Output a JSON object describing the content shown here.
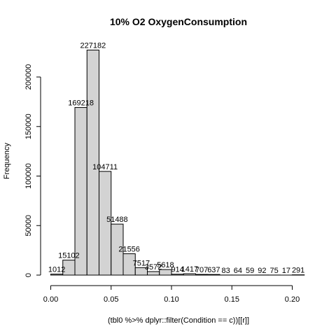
{
  "chart_data": {
    "type": "bar",
    "title": "10% O2 OxygenConsumption",
    "xlabel": "(tbl0 %>% dplyr::filter(Condition == c))[[r]]",
    "ylabel": "Frequency",
    "xlim": [
      0,
      0.21
    ],
    "ylim": [
      0,
      227182
    ],
    "x_ticks": [
      0.0,
      0.05,
      0.1,
      0.15,
      0.2
    ],
    "x_tick_labels": [
      "0.00",
      "0.05",
      "0.10",
      "0.15",
      "0.20"
    ],
    "y_ticks": [
      0,
      50000,
      100000,
      150000,
      200000
    ],
    "y_tick_labels": [
      "0",
      "50000",
      "100000",
      "150000",
      "200000"
    ],
    "bin_width": 0.01,
    "bins": [
      {
        "x0": 0.0,
        "x1": 0.01,
        "value": 1012,
        "label": "1012"
      },
      {
        "x0": 0.01,
        "x1": 0.02,
        "value": 15102,
        "label": "15102"
      },
      {
        "x0": 0.02,
        "x1": 0.03,
        "value": 169218,
        "label": "169218"
      },
      {
        "x0": 0.03,
        "x1": 0.04,
        "value": 227182,
        "label": "227182"
      },
      {
        "x0": 0.04,
        "x1": 0.05,
        "value": 104711,
        "label": "104711"
      },
      {
        "x0": 0.05,
        "x1": 0.06,
        "value": 51488,
        "label": "51488"
      },
      {
        "x0": 0.06,
        "x1": 0.07,
        "value": 21556,
        "label": "21556"
      },
      {
        "x0": 0.07,
        "x1": 0.08,
        "value": 7517,
        "label": "7517"
      },
      {
        "x0": 0.08,
        "x1": 0.09,
        "value": 3572,
        "label": "3572"
      },
      {
        "x0": 0.09,
        "x1": 0.1,
        "value": 5618,
        "label": "5618"
      },
      {
        "x0": 0.1,
        "x1": 0.11,
        "value": 914,
        "label": "914"
      },
      {
        "x0": 0.11,
        "x1": 0.12,
        "value": 1417,
        "label": "1417"
      },
      {
        "x0": 0.12,
        "x1": 0.13,
        "value": 707,
        "label": "707"
      },
      {
        "x0": 0.13,
        "x1": 0.14,
        "value": 637,
        "label": "637"
      },
      {
        "x0": 0.14,
        "x1": 0.15,
        "value": 83,
        "label": "83"
      },
      {
        "x0": 0.15,
        "x1": 0.16,
        "value": 64,
        "label": "64"
      },
      {
        "x0": 0.16,
        "x1": 0.17,
        "value": 59,
        "label": "59"
      },
      {
        "x0": 0.17,
        "x1": 0.18,
        "value": 92,
        "label": "92"
      },
      {
        "x0": 0.18,
        "x1": 0.19,
        "value": 75,
        "label": "75"
      },
      {
        "x0": 0.19,
        "x1": 0.2,
        "value": 17,
        "label": "17"
      },
      {
        "x0": 0.2,
        "x1": 0.21,
        "value": 291,
        "label": "291"
      }
    ],
    "bar_fill": "#d3d3d3",
    "bar_stroke": "#000000",
    "grid": false,
    "legend": "none"
  }
}
